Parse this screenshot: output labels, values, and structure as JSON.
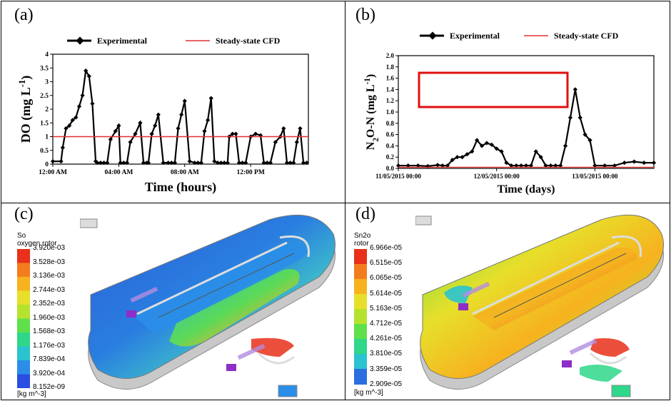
{
  "panels": {
    "a": {
      "label": "(a)"
    },
    "b": {
      "label": "(b)"
    },
    "c": {
      "label": "(c)"
    },
    "d": {
      "label": "(d)"
    }
  },
  "chart_data": [
    {
      "type": "line",
      "legend": [
        "Experimental",
        "Steady-state CFD"
      ],
      "legend_placement": "top",
      "xlabel": "Time (hours)",
      "ylabel": "DO (mg L-1)",
      "x_tick_labels": [
        "12:00 AM",
        "04:00 AM",
        "08:00 AM",
        "12:00 PM"
      ],
      "x_tick_hours": [
        0,
        4,
        8,
        12
      ],
      "xlim": [
        0,
        15.5
      ],
      "ylim": [
        0,
        4
      ],
      "y_ticks": [
        "0",
        "0.5",
        "1",
        "1.5",
        "2",
        "2.5",
        "3",
        "3.5",
        "4"
      ],
      "series": [
        {
          "name": "Experimental",
          "color": "#000000",
          "x": [
            0,
            0.5,
            0.6,
            0.8,
            1.0,
            1.2,
            1.4,
            1.6,
            1.8,
            2.0,
            2.2,
            2.4,
            2.6,
            2.7,
            2.9,
            3.1,
            3.3,
            3.5,
            3.8,
            4.0,
            4.1,
            4.3,
            4.5,
            4.7,
            5.0,
            5.3,
            5.5,
            5.7,
            5.8,
            6.0,
            6.2,
            6.4,
            6.7,
            7.0,
            7.2,
            7.4,
            7.6,
            7.8,
            8.0,
            8.3,
            8.6,
            8.8,
            9.0,
            9.2,
            9.4,
            9.6,
            9.8,
            10.0,
            10.2,
            10.4,
            10.6,
            10.7,
            10.9,
            11.1,
            11.3,
            11.5,
            11.7,
            12.0,
            12.3,
            12.6,
            12.8,
            13.0,
            13.2,
            13.5,
            13.8,
            14.0,
            14.2,
            14.4,
            14.6,
            14.8,
            15.0,
            15.2,
            15.4
          ],
          "y": [
            0.1,
            0.1,
            0.6,
            1.3,
            1.4,
            1.6,
            1.7,
            2.1,
            2.5,
            3.4,
            3.2,
            2.2,
            0.1,
            0.05,
            0.05,
            0.05,
            0.05,
            0.9,
            1.2,
            1.4,
            0.05,
            0.05,
            0.05,
            0.8,
            1.1,
            1.5,
            0.05,
            0.05,
            0.05,
            1.1,
            1.4,
            1.8,
            0.05,
            0.05,
            0.05,
            0.05,
            1.3,
            1.8,
            2.3,
            0.1,
            0.05,
            0.05,
            0.05,
            1.2,
            1.6,
            2.4,
            0.1,
            0.05,
            0.05,
            0.05,
            0.05,
            1.0,
            1.1,
            1.1,
            0.05,
            0.05,
            0.05,
            1.0,
            1.1,
            1.05,
            0.05,
            0.05,
            0.05,
            0.8,
            1.0,
            1.3,
            0.05,
            0.05,
            0.05,
            0.8,
            1.3,
            0.05,
            0.05
          ]
        },
        {
          "name": "Steady-state CFD",
          "color": "#e03030",
          "x": [
            0,
            15.5
          ],
          "y": [
            1.0,
            1.0
          ]
        }
      ]
    },
    {
      "type": "line",
      "legend": [
        "Experimental",
        "Steady-state CFD"
      ],
      "legend_placement": "top",
      "xlabel": "Time (days)",
      "ylabel": "N2O-N (mg L-1)",
      "x_tick_labels": [
        "11/05/2015 00:00",
        "12/05/2015 00:00",
        "13/05/2015 00:00"
      ],
      "x_tick_days": [
        0,
        1,
        2
      ],
      "xlim": [
        0,
        2.6
      ],
      "ylim": [
        0,
        2.0
      ],
      "y_ticks": [
        "0.0",
        "0.2",
        "0.4",
        "0.6",
        "0.8",
        "1.0",
        "1.2",
        "1.4",
        "1.6",
        "1.8",
        "2.0"
      ],
      "series": [
        {
          "name": "Experimental",
          "color": "#000000",
          "x": [
            0,
            0.1,
            0.2,
            0.3,
            0.4,
            0.45,
            0.5,
            0.55,
            0.6,
            0.65,
            0.7,
            0.75,
            0.8,
            0.85,
            0.9,
            0.95,
            1.0,
            1.05,
            1.1,
            1.15,
            1.2,
            1.25,
            1.3,
            1.35,
            1.4,
            1.45,
            1.5,
            1.55,
            1.6,
            1.65,
            1.7,
            1.75,
            1.8,
            1.85,
            1.9,
            1.95,
            2.0,
            2.1,
            2.2,
            2.3,
            2.4,
            2.5,
            2.6
          ],
          "y": [
            0.05,
            0.05,
            0.05,
            0.04,
            0.06,
            0.05,
            0.05,
            0.15,
            0.2,
            0.2,
            0.25,
            0.3,
            0.5,
            0.4,
            0.45,
            0.42,
            0.35,
            0.3,
            0.1,
            0.05,
            0.05,
            0.05,
            0.05,
            0.05,
            0.3,
            0.2,
            0.05,
            0.05,
            0.05,
            0.05,
            0.4,
            0.9,
            1.4,
            0.9,
            0.6,
            0.5,
            0.05,
            0.05,
            0.05,
            0.1,
            0.12,
            0.1,
            0.1
          ]
        },
        {
          "name": "Steady-state CFD",
          "color": "#e03030",
          "x": [
            0,
            2.6
          ],
          "y": [
            0.02,
            0.02
          ]
        }
      ]
    }
  ],
  "colorbars": {
    "c": {
      "title_line1": "So",
      "title_line2": "oxygen rotor",
      "unit": "[kg m^-3]",
      "labels": [
        "3.920e-03",
        "3.528e-03",
        "3.136e-03",
        "2.744e-03",
        "2.352e-03",
        "1.960e-03",
        "1.568e-03",
        "1.176e-03",
        "7.839e-04",
        "3.920e-04",
        "8.152e-09"
      ]
    },
    "d": {
      "title_line1": "Sn2o",
      "title_line2": "rotor",
      "unit": "[kg m^-3]",
      "labels": [
        "6.966e-05",
        "6.515e-05",
        "6.065e-05",
        "5.614e-05",
        "5.163e-05",
        "4.712e-05",
        "4.261e-05",
        "3.810e-05",
        "3.359e-05",
        "2.909e-05"
      ]
    }
  },
  "colors": {
    "cfd_line": "#e03030",
    "highlight_box": "#e01010"
  }
}
